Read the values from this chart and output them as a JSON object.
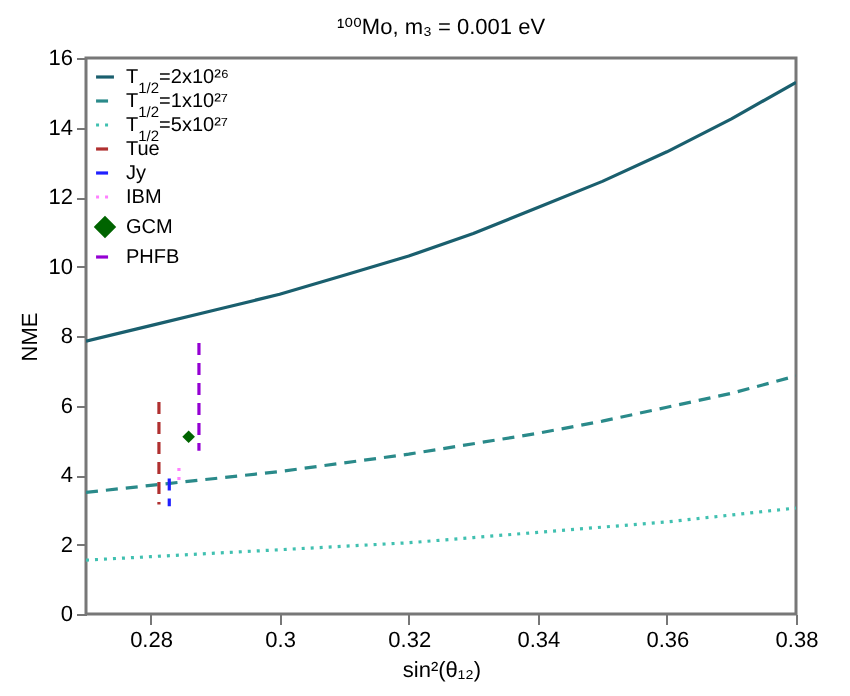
{
  "chart_data": {
    "type": "line",
    "title": "¹⁰⁰Mo, m₃ = 0.001 eV",
    "xlabel": "sin²(θ₁₂)",
    "ylabel": "NME",
    "xlim": [
      0.27,
      0.38
    ],
    "xticks": [
      0.28,
      0.3,
      0.32,
      0.34,
      0.36,
      0.38
    ],
    "ylim": [
      0,
      16
    ],
    "yticks": [
      0,
      2,
      4,
      6,
      8,
      10,
      12,
      14,
      16
    ],
    "grid": false,
    "legend": "top left",
    "x": [
      0.27,
      0.28,
      0.29,
      0.3,
      0.31,
      0.32,
      0.33,
      0.34,
      0.35,
      0.36,
      0.37,
      0.38
    ],
    "series": [
      {
        "name": "T$_{1/2}$=2x10²⁶",
        "color": "#1a5f6e",
        "line_style": "solid",
        "values": [
          7.85,
          8.3,
          8.75,
          9.2,
          9.75,
          10.3,
          10.95,
          11.7,
          12.45,
          13.3,
          14.25,
          15.3
        ]
      },
      {
        "name": "T$_{1/2}$=1x10²⁷",
        "color": "#2a8a8a",
        "line_style": "dashed",
        "values": [
          3.5,
          3.7,
          3.9,
          4.1,
          4.35,
          4.6,
          4.9,
          5.2,
          5.55,
          5.95,
          6.35,
          6.85
        ]
      },
      {
        "name": "T$_{1/2}$=5x10²⁷",
        "color": "#40c0b0",
        "line_style": "dotted",
        "values": [
          1.55,
          1.65,
          1.75,
          1.85,
          1.95,
          2.05,
          2.2,
          2.35,
          2.5,
          2.65,
          2.85,
          3.05
        ]
      },
      {
        "name": "Tue",
        "color": "#b03030",
        "line_style": "dashed",
        "x": [
          0.2813,
          0.2813
        ],
        "values": [
          6.1,
          3.15
        ]
      },
      {
        "name": "Jy",
        "color": "#2020ff",
        "line_style": "dashed",
        "x": [
          0.2829,
          0.2829
        ],
        "values": [
          3.9,
          3.1
        ]
      },
      {
        "name": "IBM",
        "color": "#ff80ff",
        "line_style": "dotted",
        "x": [
          0.2844,
          0.2844
        ],
        "values": [
          4.2,
          3.85
        ]
      },
      {
        "name": "GCM",
        "type": "scatter",
        "marker": "diamond",
        "color": "#006400",
        "x": [
          0.2859
        ],
        "values": [
          5.1
        ]
      },
      {
        "name": "PHFB",
        "color": "#9400d3",
        "line_style": "dashed",
        "x": [
          0.2875,
          0.2875
        ],
        "values": [
          7.8,
          4.7
        ]
      }
    ]
  }
}
